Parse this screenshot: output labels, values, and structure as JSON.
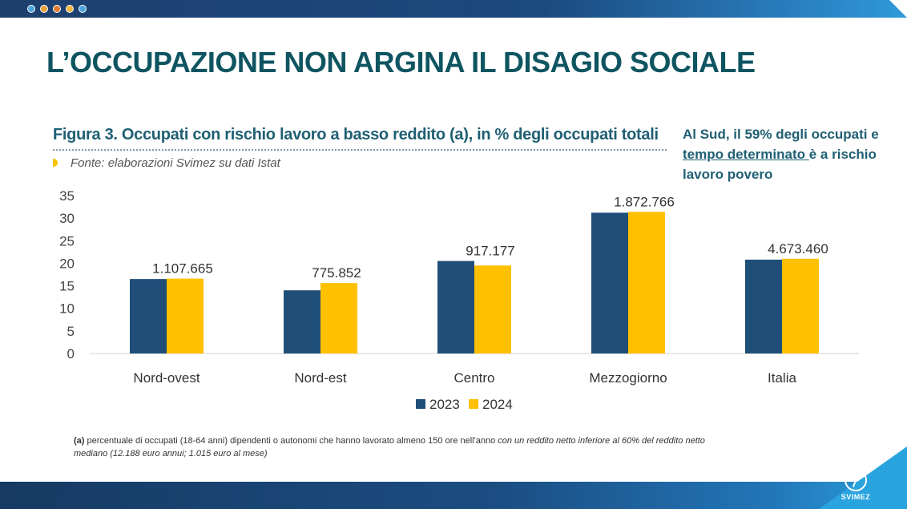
{
  "header": {
    "dot_colors": [
      "#4ea6dc",
      "#e8a33c",
      "#e07a3a",
      "#f0b640",
      "#4ea6dc"
    ],
    "title": "L’OCCUPAZIONE NON ARGINA IL DISAGIO SOCIALE"
  },
  "figure": {
    "title": "Figura 3. Occupati con rischio lavoro a basso reddito (a), in % degli occupati totali",
    "source": "Fonte: elaborazioni Svimez su dati Istat"
  },
  "callout": {
    "part1": "Al Sud, il 59% degli occupati e ",
    "underlined": "tempo determinato ",
    "part2": "è  a rischio lavoro povero"
  },
  "footnote": {
    "marker": "(a)",
    "text": " percentuale di occupati  (18-64 anni) dipendenti o  autonomi che hanno lavorato almeno  150 ore nell'anno ",
    "italic": "con un reddito netto inferiore al 60% del reddito netto mediano (12.188 euro annui;  1.015 euro al mese)"
  },
  "logo": {
    "label": "SVIMEZ"
  },
  "chart_data": {
    "type": "bar",
    "categories": [
      "Nord-ovest",
      "Nord-est",
      "Centro",
      "Mezzogiorno",
      "Italia"
    ],
    "series": [
      {
        "name": "2023",
        "values": [
          16.5,
          14.0,
          20.5,
          31.2,
          20.8
        ],
        "color": "#1f4e79"
      },
      {
        "name": "2024",
        "values": [
          16.6,
          15.6,
          19.5,
          31.4,
          21.0
        ],
        "color": "#ffc000"
      }
    ],
    "data_labels": [
      "1.107.665",
      "775.852",
      "917.177",
      "1.872.766",
      "4.673.460"
    ],
    "ylim": [
      0,
      35
    ],
    "yticks": [
      0,
      5,
      10,
      15,
      20,
      25,
      30,
      35
    ],
    "grid": false,
    "legend_position": "bottom"
  }
}
